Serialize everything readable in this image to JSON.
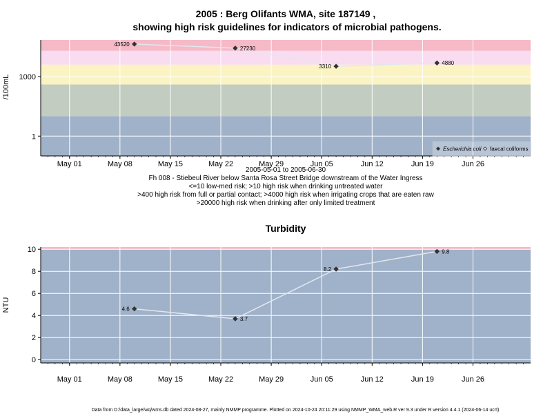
{
  "chart_data": [
    {
      "type": "scatter",
      "title_line1": "2005 : Berg Olifants WMA, site 187149 ,",
      "title_line2": "showing high risk guidelines for indicators of microbial pathogens.",
      "ylabel": "/100mL",
      "yscale": "log10",
      "ylim": [
        0.1,
        70000
      ],
      "xlim": [
        "2005-04-27",
        "2005-07-04"
      ],
      "date_range_label": "2005-05-01 to 2005-06-30",
      "x_ticks": [
        "May 01",
        "May 08",
        "May 15",
        "May 22",
        "May 29",
        "Jun 05",
        "Jun 12",
        "Jun 19",
        "Jun 26"
      ],
      "x_tick_dates": [
        "2005-05-01",
        "2005-05-08",
        "2005-05-15",
        "2005-05-22",
        "2005-05-29",
        "2005-06-05",
        "2005-06-12",
        "2005-06-19",
        "2005-06-26"
      ],
      "y_ticks": [
        1,
        1000
      ],
      "y_tick_labels": [
        "1",
        "1000"
      ],
      "risk_bands": [
        {
          "from": 0.1,
          "to": 10,
          "color": "#a0b2c9"
        },
        {
          "from": 10,
          "to": 400,
          "color": "#c2ccc1"
        },
        {
          "from": 400,
          "to": 4000,
          "color": "#fbf3c2"
        },
        {
          "from": 4000,
          "to": 20000,
          "color": "#f9dcef"
        },
        {
          "from": 20000,
          "to": 70000,
          "color": "#f6b9c7"
        }
      ],
      "series": [
        {
          "name": "Escherichia coli",
          "marker": "filled-diamond",
          "x": [
            "2005-05-10",
            "2005-05-24",
            "2005-06-07",
            "2005-06-21"
          ],
          "y": [
            43520,
            27230,
            3310,
            4880
          ],
          "labels": [
            "43520",
            "27230",
            "3310",
            "4880"
          ]
        },
        {
          "name": "faecal coliforms",
          "marker": "open-diamond",
          "x": [],
          "y": []
        }
      ],
      "legend_position": "bottom-right",
      "caption_lines": [
        "Fh 008 - Stiebeul River below Santa Rosa Street Bridge downstream of the Water Ingress",
        "<=10 low-med risk; >10 high risk when drinking untreated water",
        ">400 high risk from full or partial contact; >4000 high risk when irrigating crops that are eaten raw",
        ">20000 high risk when drinking after only limited treatment"
      ]
    },
    {
      "type": "line",
      "title": "Turbidity",
      "ylabel": "NTU",
      "ylim": [
        -0.3,
        10.2
      ],
      "xlim": [
        "2005-04-27",
        "2005-07-04"
      ],
      "x_ticks": [
        "May 01",
        "May 08",
        "May 15",
        "May 22",
        "May 29",
        "Jun 05",
        "Jun 12",
        "Jun 19",
        "Jun 26"
      ],
      "x_tick_dates": [
        "2005-05-01",
        "2005-05-08",
        "2005-05-15",
        "2005-05-22",
        "2005-05-29",
        "2005-06-05",
        "2005-06-12",
        "2005-06-19",
        "2005-06-26"
      ],
      "y_ticks": [
        0,
        2,
        4,
        6,
        8,
        10
      ],
      "y_tick_labels": [
        "0",
        "2",
        "4",
        "6",
        "8",
        "10"
      ],
      "series": [
        {
          "x": [
            "2005-05-10",
            "2005-05-24",
            "2005-06-07",
            "2005-06-21"
          ],
          "y": [
            4.6,
            3.7,
            8.2,
            9.8
          ],
          "labels": [
            "4.6",
            "3.7",
            "8.2",
            "9.8"
          ]
        }
      ]
    }
  ],
  "footer": "Data from D:/data_large/wq/wms.db dated 2024-08-27, mainly NMMP programme. Plotted on 2024-10-24 20:11:29 using NMMP_WMA_web.R ver 9.3 under R version 4.4.1 (2024-06-14 ucrt)",
  "colors": {
    "line": "#e4e6ef",
    "marker": "#333333",
    "grid": "#ffffff",
    "turbidity_bg": "#a0b2c9",
    "top_band_edge": "#f6b9c7"
  }
}
